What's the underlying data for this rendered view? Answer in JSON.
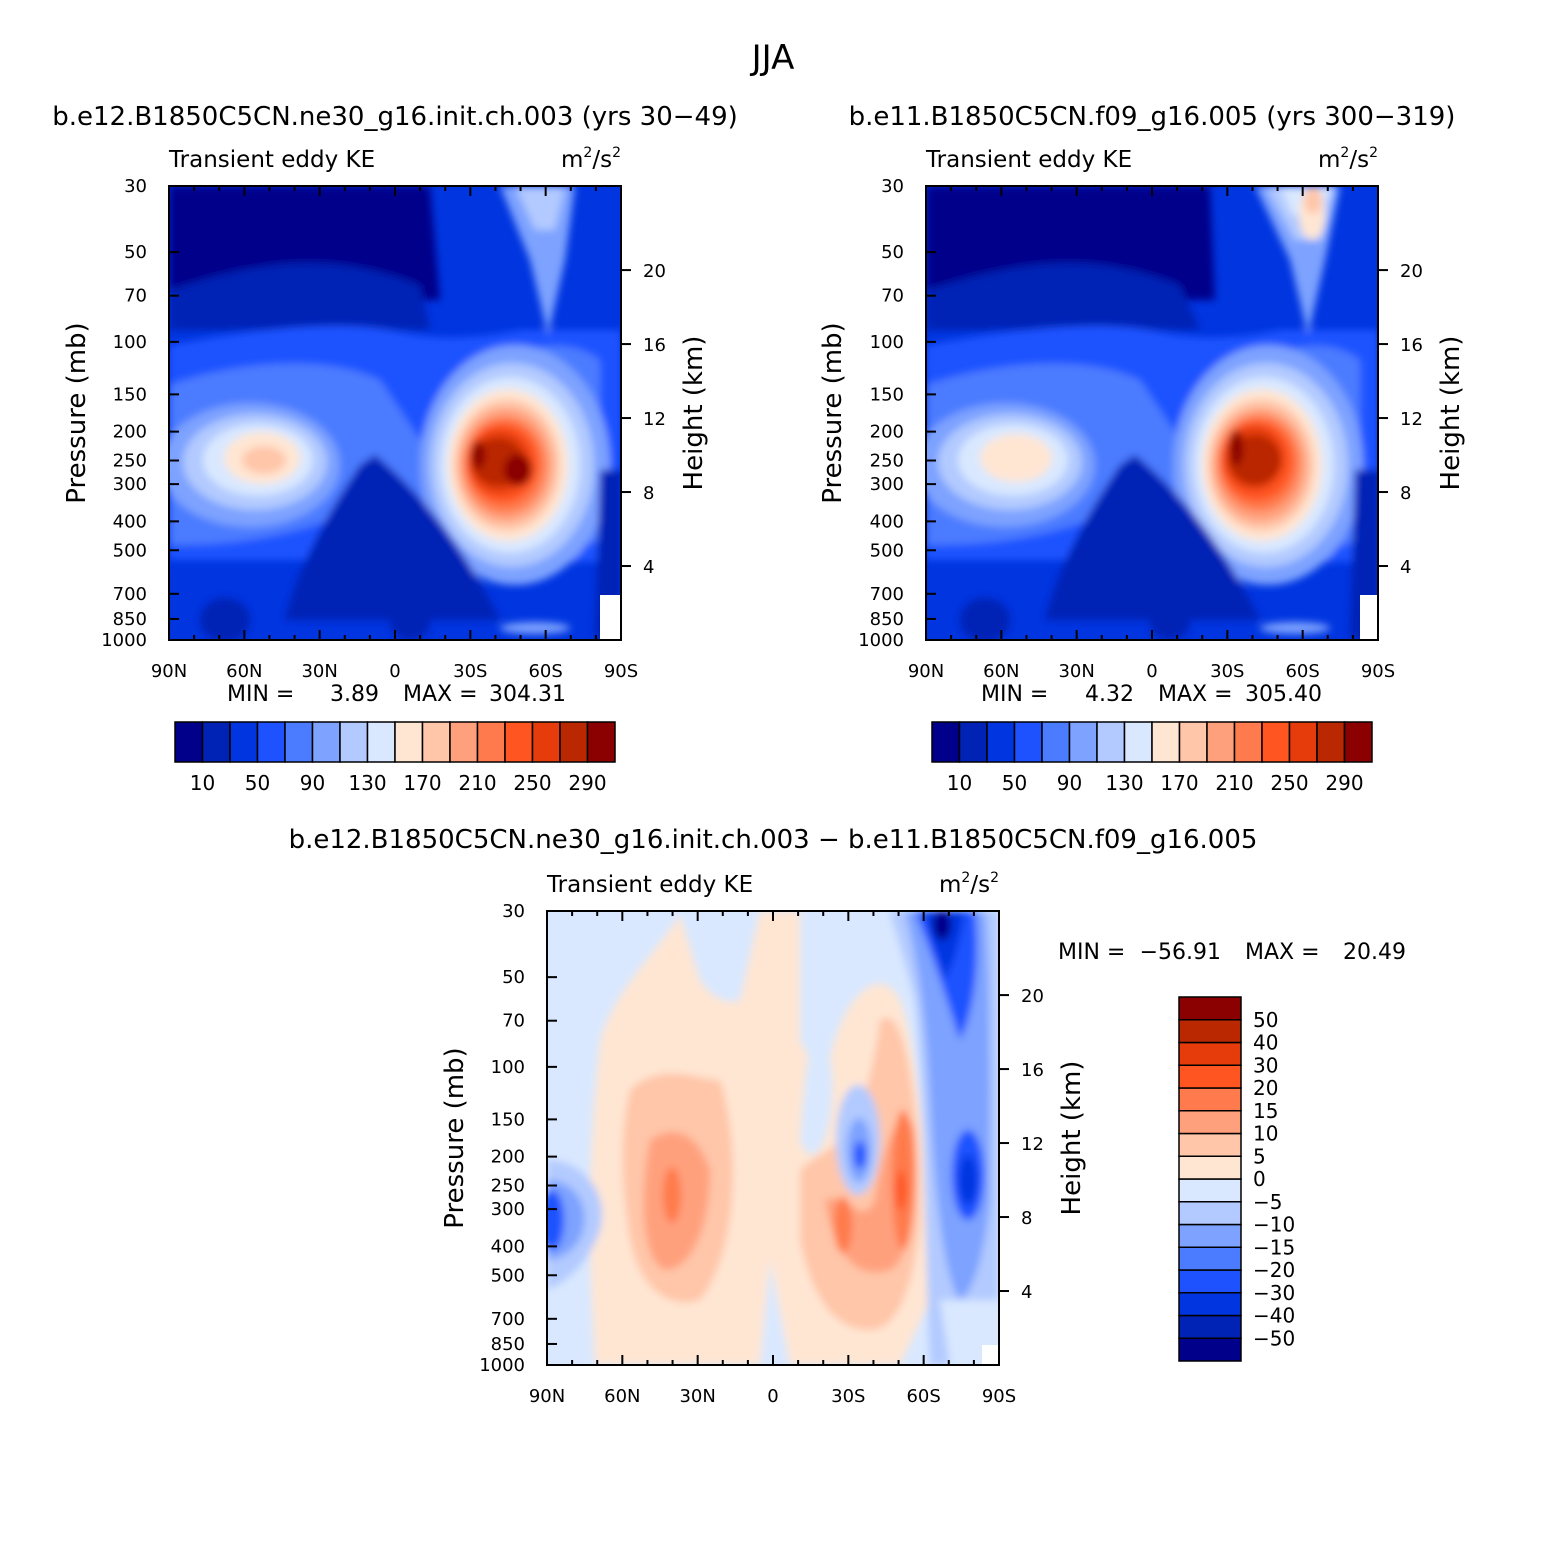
{
  "page": {
    "title": "JJA"
  },
  "chart_data": [
    {
      "id": "panel1",
      "type": "heatmap",
      "case_title": "b.e12.B1850C5CN.ne30_g16.init.ch.003 (yrs 30−49)",
      "left_string": "Transient eddy KE",
      "units": {
        "base": "m",
        "exp1": "2",
        "slash": "/s",
        "exp2": "2"
      },
      "ylabel": "Pressure (mb)",
      "ylabel_right": "Height (km)",
      "x_ticks": [
        "90N",
        "60N",
        "30N",
        "0",
        "30S",
        "60S",
        "90S"
      ],
      "x_range": [
        90,
        -90
      ],
      "y_ticks": [
        30,
        50,
        70,
        100,
        150,
        200,
        250,
        300,
        400,
        500,
        700,
        850,
        1000
      ],
      "y_range_mb": [
        1000,
        30
      ],
      "height_ticks_km": [
        4,
        8,
        12,
        16,
        20
      ],
      "stats": {
        "min_label": "MIN =",
        "min": "3.89",
        "max_label": "MAX =",
        "max": "304.31"
      },
      "colorbar": {
        "orientation": "horizontal",
        "colors": [
          "#00008a",
          "#0022b5",
          "#0035e0",
          "#1f52ff",
          "#4b7cff",
          "#7da2ff",
          "#b2caff",
          "#d9e8ff",
          "#ffe6d3",
          "#ffc6a9",
          "#ffa07d",
          "#ff7a4c",
          "#ff5520",
          "#e63c0c",
          "#b92800",
          "#8b0000"
        ],
        "labels": [
          "10",
          "50",
          "90",
          "130",
          "170",
          "210",
          "250",
          "290"
        ]
      },
      "features": [
        {
          "lat": 45,
          "p": 250,
          "value": 185
        },
        {
          "lat": -36,
          "p": 260,
          "value": 304.31
        },
        {
          "lat": -50,
          "p": 280,
          "value": 300
        },
        {
          "lat": -60,
          "p": 35,
          "value": 145
        },
        {
          "lat": 0,
          "p": 450,
          "value": 4
        }
      ]
    },
    {
      "id": "panel2",
      "type": "heatmap",
      "case_title": "b.e11.B1850C5CN.f09_g16.005 (yrs 300−319)",
      "left_string": "Transient eddy KE",
      "units": {
        "base": "m",
        "exp1": "2",
        "slash": "/s",
        "exp2": "2"
      },
      "ylabel": "Pressure (mb)",
      "ylabel_right": "Height (km)",
      "x_ticks": [
        "90N",
        "60N",
        "30N",
        "0",
        "30S",
        "60S",
        "90S"
      ],
      "x_range": [
        90,
        -90
      ],
      "y_ticks": [
        30,
        50,
        70,
        100,
        150,
        200,
        250,
        300,
        400,
        500,
        700,
        850,
        1000
      ],
      "y_range_mb": [
        1000,
        30
      ],
      "height_ticks_km": [
        4,
        8,
        12,
        16,
        20
      ],
      "stats": {
        "min_label": "MIN =",
        "min": "4.32",
        "max_label": "MAX =",
        "max": "305.40"
      },
      "colorbar": {
        "orientation": "horizontal",
        "colors": [
          "#00008a",
          "#0022b5",
          "#0035e0",
          "#1f52ff",
          "#4b7cff",
          "#7da2ff",
          "#b2caff",
          "#d9e8ff",
          "#ffe6d3",
          "#ffc6a9",
          "#ffa07d",
          "#ff7a4c",
          "#ff5520",
          "#e63c0c",
          "#b92800",
          "#8b0000"
        ],
        "labels": [
          "10",
          "50",
          "90",
          "130",
          "170",
          "210",
          "250",
          "290"
        ]
      },
      "features": [
        {
          "lat": 45,
          "p": 250,
          "value": 180
        },
        {
          "lat": -33,
          "p": 250,
          "value": 305.4
        },
        {
          "lat": -48,
          "p": 270,
          "value": 285
        },
        {
          "lat": -63,
          "p": 30,
          "value": 175
        },
        {
          "lat": 0,
          "p": 450,
          "value": 4
        }
      ]
    },
    {
      "id": "panel3",
      "type": "heatmap",
      "case_title": "b.e12.B1850C5CN.ne30_g16.init.ch.003 − b.e11.B1850C5CN.f09_g16.005",
      "left_string": "Transient eddy KE",
      "units": {
        "base": "m",
        "exp1": "2",
        "slash": "/s",
        "exp2": "2"
      },
      "ylabel": "Pressure (mb)",
      "ylabel_right": "Height (km)",
      "x_ticks": [
        "90N",
        "60N",
        "30N",
        "0",
        "30S",
        "60S",
        "90S"
      ],
      "x_range": [
        90,
        -90
      ],
      "y_ticks": [
        30,
        50,
        70,
        100,
        150,
        200,
        250,
        300,
        400,
        500,
        700,
        850,
        1000
      ],
      "y_range_mb": [
        1000,
        30
      ],
      "height_ticks_km": [
        4,
        8,
        12,
        16,
        20
      ],
      "stats": {
        "min_label": "MIN =",
        "min": "−56.91",
        "max_label": "MAX =",
        "max": "20.49"
      },
      "colorbar": {
        "orientation": "vertical",
        "colors": [
          "#00008a",
          "#0022b5",
          "#0035e0",
          "#1f52ff",
          "#4b7cff",
          "#7da2ff",
          "#b2caff",
          "#d9e8ff",
          "#ffe6d3",
          "#ffc6a9",
          "#ffa07d",
          "#ff7a4c",
          "#ff5520",
          "#e63c0c",
          "#b92800",
          "#8b0000"
        ],
        "labels": [
          "50",
          "40",
          "30",
          "20",
          "15",
          "10",
          "5",
          "0",
          "−5",
          "−10",
          "−15",
          "−20",
          "−30",
          "−40",
          "−50"
        ]
      },
      "features": [
        {
          "lat": -67,
          "p": 32,
          "value": -56.91
        },
        {
          "lat": -52,
          "p": 280,
          "value": 20.49
        },
        {
          "lat": 38,
          "p": 290,
          "value": 14
        },
        {
          "lat": 85,
          "p": 320,
          "value": -22
        },
        {
          "lat": -75,
          "p": 250,
          "value": -25
        }
      ]
    }
  ]
}
